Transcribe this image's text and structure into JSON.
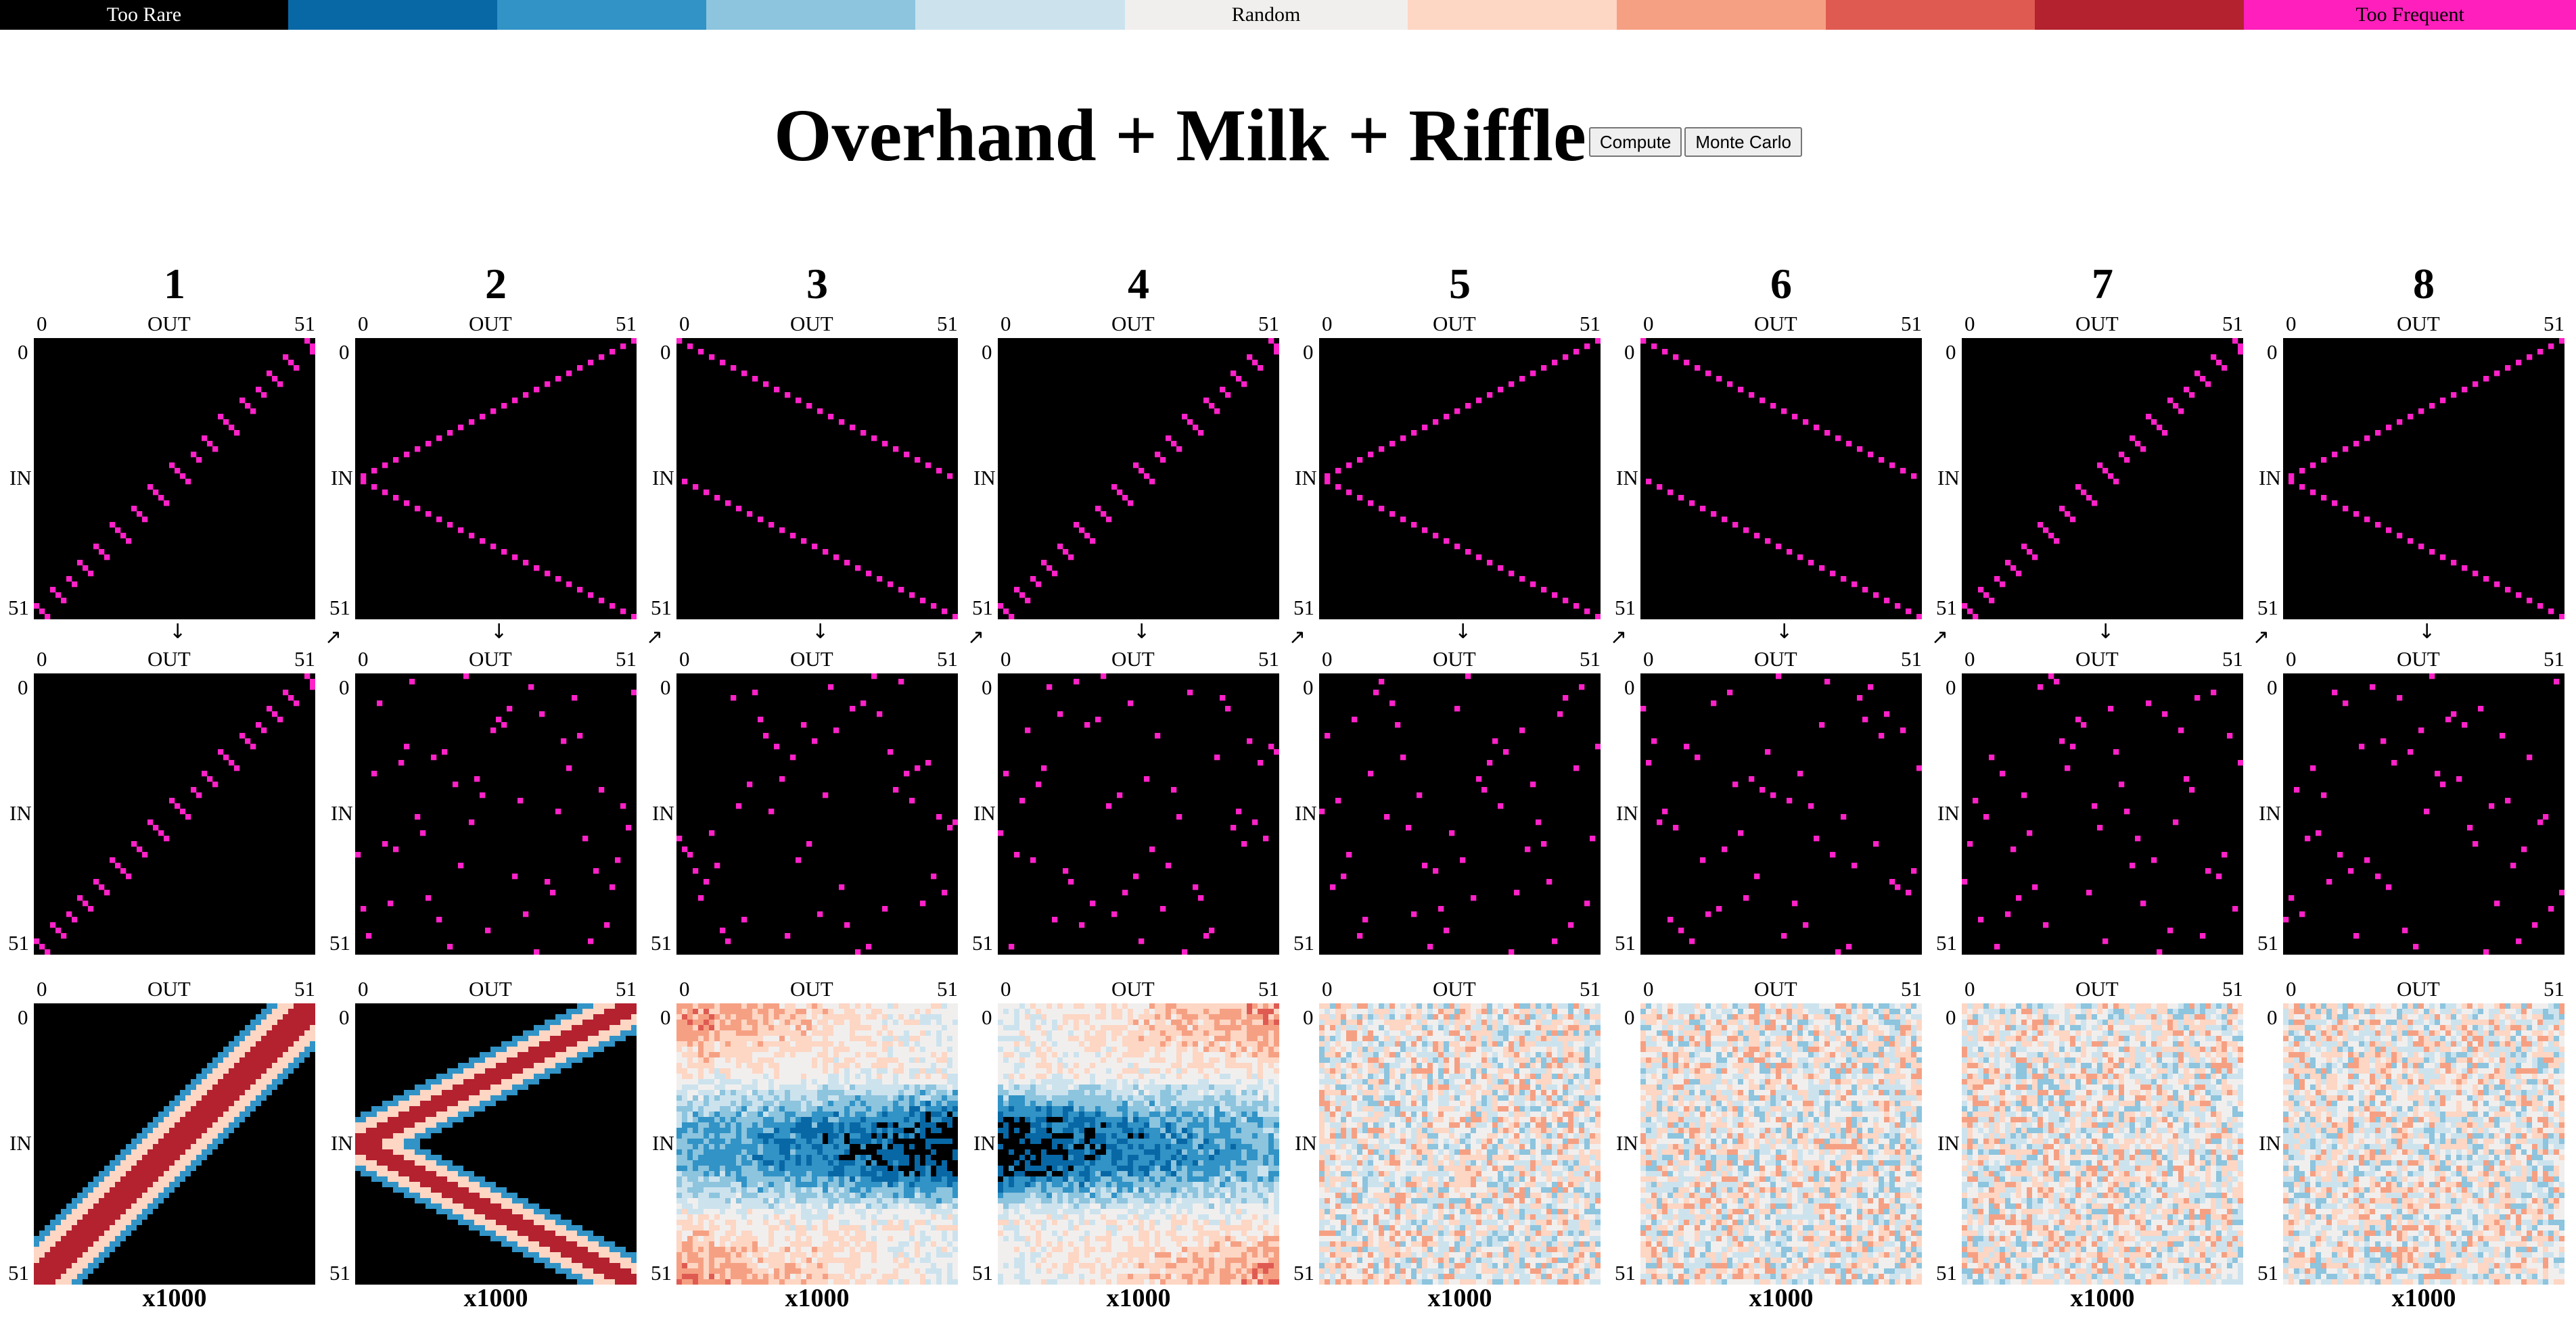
{
  "legend": {
    "cells": [
      {
        "label": "Too Rare",
        "color": "#000000",
        "text_color": "#ffffff"
      },
      {
        "label": "",
        "color": "#0868a6",
        "text_color": "#000000"
      },
      {
        "label": "",
        "color": "#3193c6",
        "text_color": "#000000"
      },
      {
        "label": "",
        "color": "#8dc4de",
        "text_color": "#000000"
      },
      {
        "label": "",
        "color": "#cce3ee",
        "text_color": "#000000"
      },
      {
        "label": "Random",
        "color": "#f1efee",
        "text_color": "#000000"
      },
      {
        "label": "",
        "color": "#fdd6c4",
        "text_color": "#000000"
      },
      {
        "label": "",
        "color": "#f6a083",
        "text_color": "#000000"
      },
      {
        "label": "",
        "color": "#df5b52",
        "text_color": "#000000"
      },
      {
        "label": "",
        "color": "#b4212f",
        "text_color": "#000000"
      },
      {
        "label": "Too Frequent",
        "color": "#ff1fbd",
        "text_color": "#000000"
      }
    ]
  },
  "header": {
    "title": "Overhand + Milk + Riffle",
    "compute_label": "Compute",
    "monte_carlo_label": "Monte Carlo"
  },
  "axis": {
    "min_label": "0",
    "max_label": "51",
    "out_label": "OUT",
    "in_label": "IN"
  },
  "arrows": {
    "down": "↓",
    "diagonal": "↗"
  },
  "colors": {
    "marker": "#ff22c8",
    "background": "#000000"
  },
  "stages": [
    {
      "number": "1",
      "footer": "x1000"
    },
    {
      "number": "2",
      "footer": "x1000"
    },
    {
      "number": "3",
      "footer": "x1000"
    },
    {
      "number": "4",
      "footer": "x1000"
    },
    {
      "number": "5",
      "footer": "x1000"
    },
    {
      "number": "6",
      "footer": "x1000"
    },
    {
      "number": "7",
      "footer": "x1000"
    },
    {
      "number": "8",
      "footer": "x1000"
    }
  ]
}
